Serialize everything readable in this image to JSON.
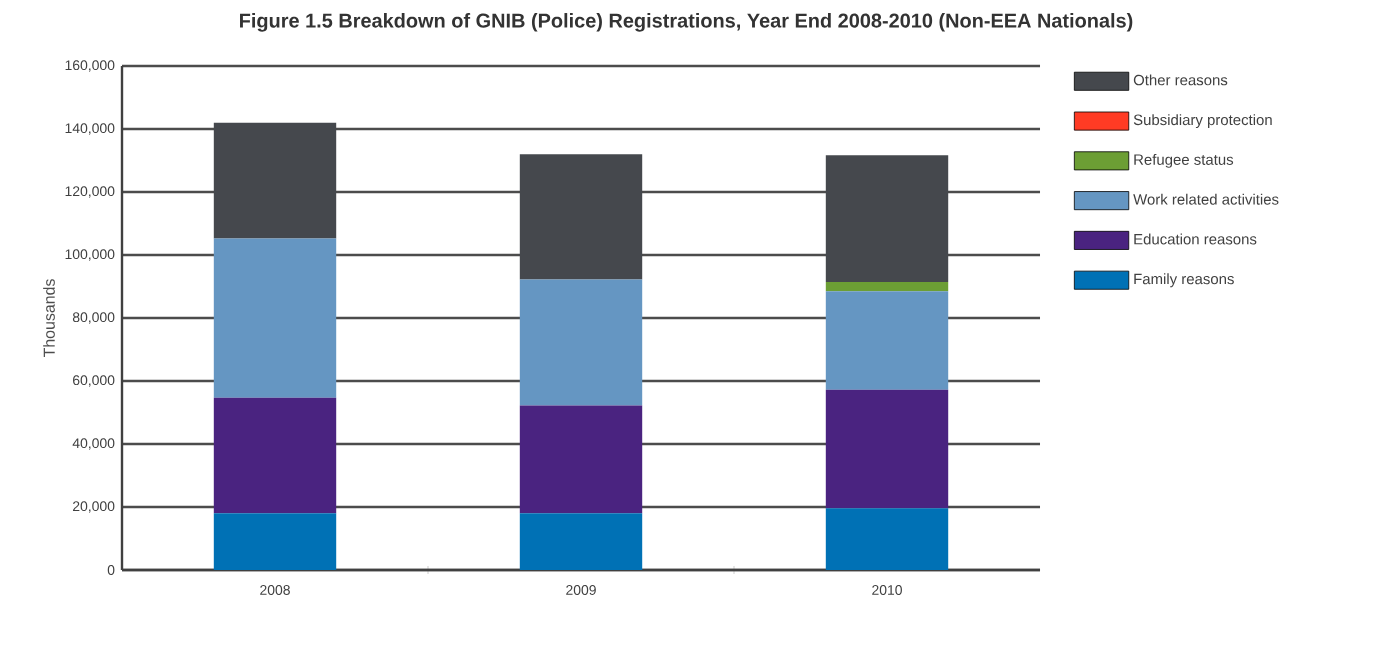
{
  "chart_data": {
    "type": "bar",
    "stacked": true,
    "title": "Figure 1.5 Breakdown of GNIB (Police) Registrations, Year End 2008-2010 (Non-EEA Nationals)",
    "ylabel": "Thousands",
    "categories": [
      "2008",
      "2009",
      "2010"
    ],
    "series": [
      {
        "name": "Family reasons",
        "color": "#0071b5",
        "values": [
          18000,
          18000,
          19600
        ]
      },
      {
        "name": "Education reasons",
        "color": "#4a2380",
        "values": [
          36700,
          34200,
          37600
        ]
      },
      {
        "name": "Work related activities",
        "color": "#6596c2",
        "values": [
          50500,
          40000,
          31300
        ]
      },
      {
        "name": "Refugee status",
        "color": "#6c9e34",
        "values": [
          0,
          0,
          2900
        ]
      },
      {
        "name": "Subsidiary protection",
        "color": "#ff3b24",
        "values": [
          0,
          0,
          0
        ]
      },
      {
        "name": "Other reasons",
        "color": "#45484d",
        "values": [
          36800,
          39800,
          40300
        ]
      }
    ],
    "ylim": [
      0,
      160000
    ],
    "yticks": [
      {
        "value": 0,
        "label": "0"
      },
      {
        "value": 20000,
        "label": "20,000"
      },
      {
        "value": 40000,
        "label": "40,000"
      },
      {
        "value": 60000,
        "label": "60,000"
      },
      {
        "value": 80000,
        "label": "80,000"
      },
      {
        "value": 100000,
        "label": "100,000"
      },
      {
        "value": 120000,
        "label": "120,000"
      },
      {
        "value": 140000,
        "label": "140,000"
      },
      {
        "value": 160000,
        "label": "160,000"
      }
    ],
    "grid": "y",
    "legend": "right"
  }
}
